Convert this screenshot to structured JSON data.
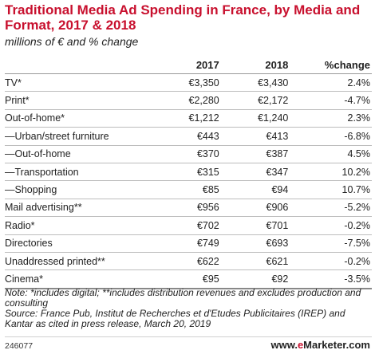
{
  "header": {
    "title": "Traditional Media Ad Spending in France, by Media and Format, 2017 & 2018",
    "subtitle": "millions of € and % change"
  },
  "chart_data": {
    "type": "table",
    "columns": [
      "",
      "2017",
      "2018",
      "%change"
    ],
    "rows": [
      [
        "TV*",
        "€3,350",
        "€3,430",
        "2.4%"
      ],
      [
        "Print*",
        "€2,280",
        "€2,172",
        "-4.7%"
      ],
      [
        "Out-of-home*",
        "€1,212",
        "€1,240",
        "2.3%"
      ],
      [
        "—Urban/street furniture",
        "€443",
        "€413",
        "-6.8%"
      ],
      [
        "—Out-of-home",
        "€370",
        "€387",
        "4.5%"
      ],
      [
        "—Transportation",
        "€315",
        "€347",
        "10.2%"
      ],
      [
        "—Shopping",
        "€85",
        "€94",
        "10.7%"
      ],
      [
        "Mail advertising**",
        "€956",
        "€906",
        "-5.2%"
      ],
      [
        "Radio*",
        "€702",
        "€701",
        "-0.2%"
      ],
      [
        "Directories",
        "€749",
        "€693",
        "-7.5%"
      ],
      [
        "Unaddressed printed**",
        "€622",
        "€621",
        "-0.2%"
      ],
      [
        "Cinema*",
        "€95",
        "€92",
        "-3.5%"
      ]
    ]
  },
  "notes": {
    "note": "Note: *includes digital; **includes distribution revenues and excludes production and consulting",
    "source": "Source: France Pub, Institut de Recherches et d'Etudes Publicitaires (IREP) and Kantar as cited in press release, March 20, 2019"
  },
  "footer": {
    "chart_id": "246077",
    "brand_prefix": "www.",
    "brand_highlight": "e",
    "brand_suffix": "Marketer.com"
  },
  "colors": {
    "title": "#c8102e",
    "text": "#222222"
  }
}
